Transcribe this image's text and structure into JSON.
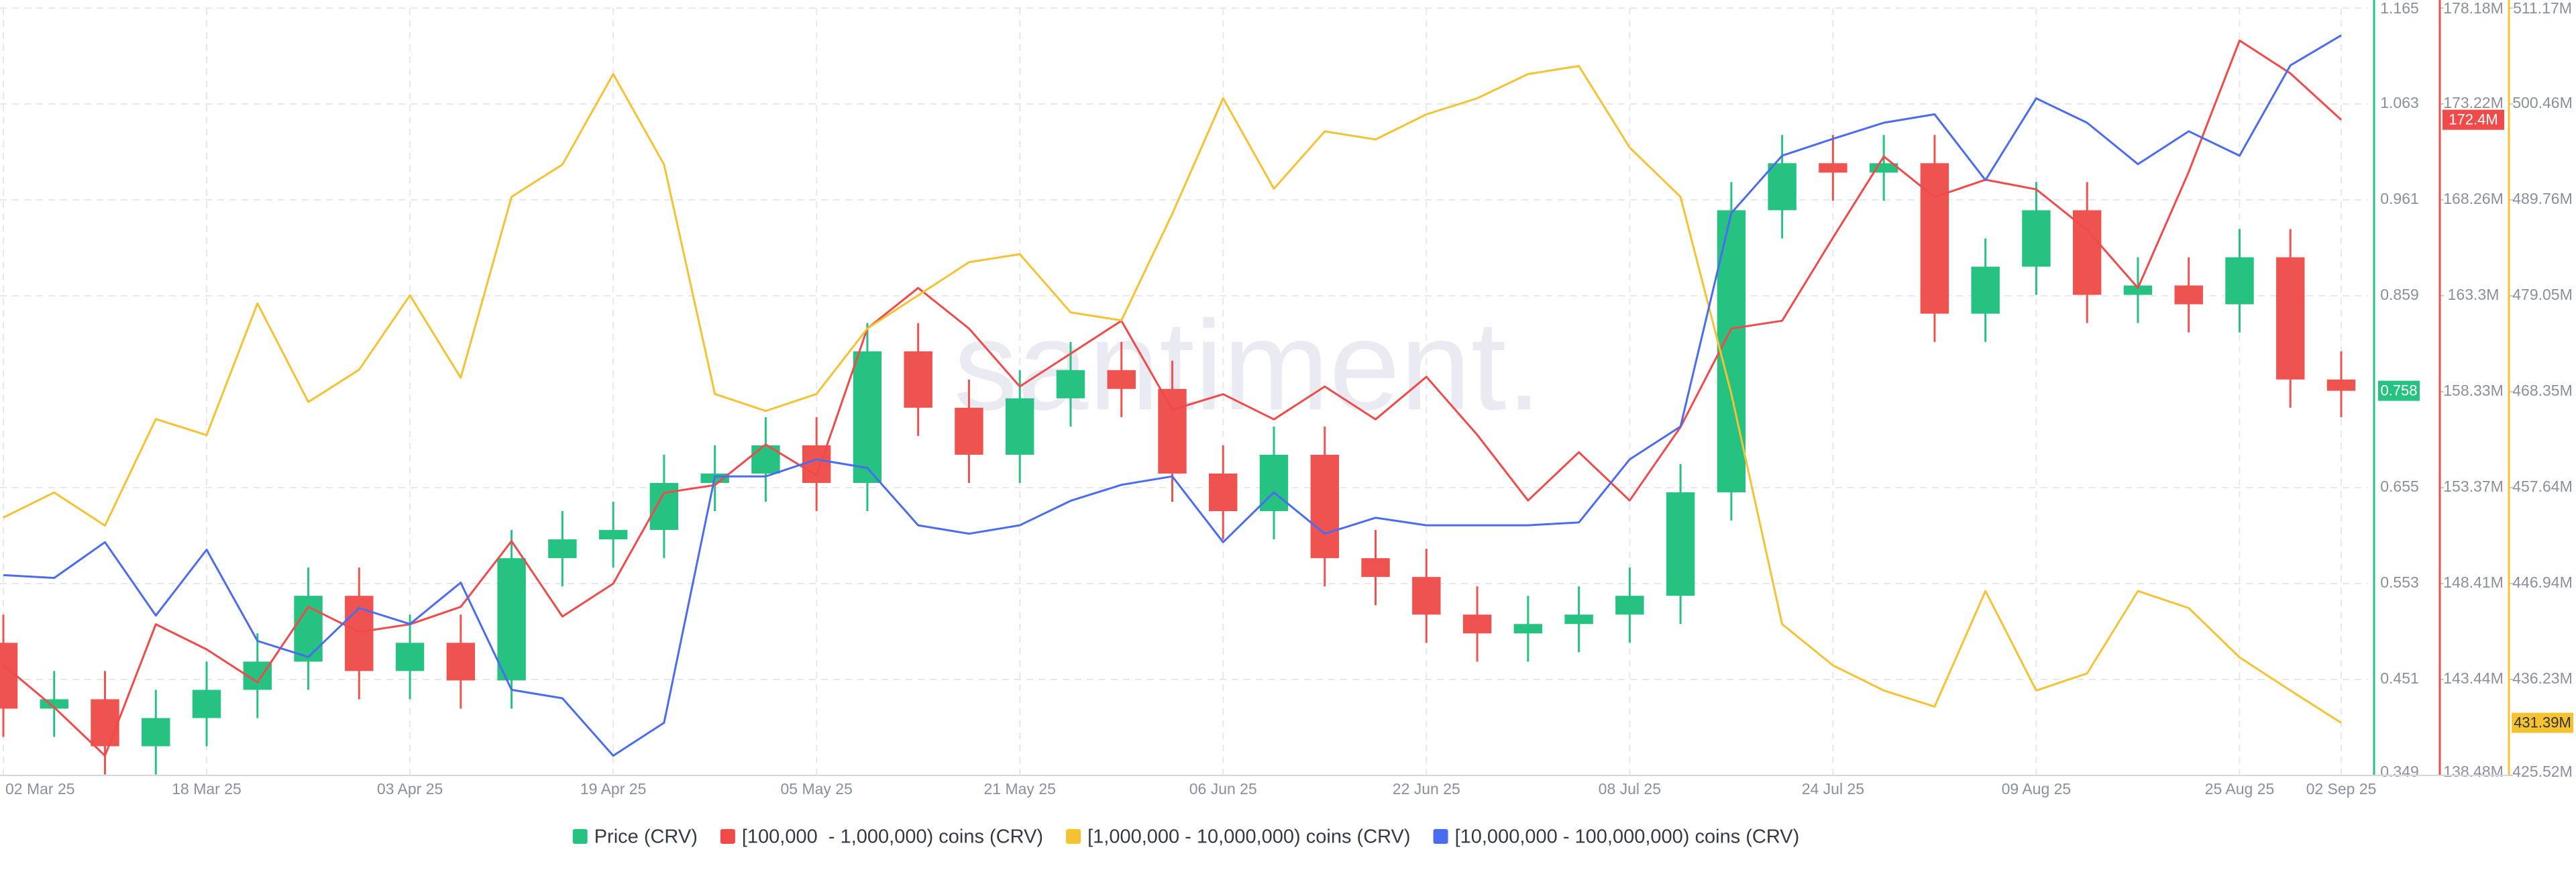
{
  "chart_data": {
    "type": "candlestick",
    "watermark": "santiment.",
    "x": [
      "2025-03-02",
      "2025-03-06",
      "2025-03-10",
      "2025-03-14",
      "2025-03-18",
      "2025-03-22",
      "2025-03-26",
      "2025-03-30",
      "2025-04-03",
      "2025-04-07",
      "2025-04-11",
      "2025-04-15",
      "2025-04-19",
      "2025-04-23",
      "2025-04-27",
      "2025-05-01",
      "2025-05-05",
      "2025-05-09",
      "2025-05-13",
      "2025-05-17",
      "2025-05-21",
      "2025-05-25",
      "2025-05-29",
      "2025-06-02",
      "2025-06-06",
      "2025-06-10",
      "2025-06-14",
      "2025-06-18",
      "2025-06-22",
      "2025-06-26",
      "2025-06-30",
      "2025-07-04",
      "2025-07-08",
      "2025-07-12",
      "2025-07-16",
      "2025-07-20",
      "2025-07-24",
      "2025-07-28",
      "2025-08-01",
      "2025-08-05",
      "2025-08-09",
      "2025-08-13",
      "2025-08-17",
      "2025-08-21",
      "2025-08-25",
      "2025-08-29",
      "2025-09-02"
    ],
    "xlim": [
      "2025-03-02",
      "2025-09-02"
    ],
    "xticks": [
      {
        "value": "2025-03-02",
        "label": "02 Mar 25"
      },
      {
        "value": "2025-03-18",
        "label": "18 Mar 25"
      },
      {
        "value": "2025-04-03",
        "label": "03 Apr 25"
      },
      {
        "value": "2025-04-19",
        "label": "19 Apr 25"
      },
      {
        "value": "2025-05-05",
        "label": "05 May 25"
      },
      {
        "value": "2025-05-21",
        "label": "21 May 25"
      },
      {
        "value": "2025-06-06",
        "label": "06 Jun 25"
      },
      {
        "value": "2025-06-22",
        "label": "22 Jun 25"
      },
      {
        "value": "2025-07-08",
        "label": "08 Jul 25"
      },
      {
        "value": "2025-07-24",
        "label": "24 Jul 25"
      },
      {
        "value": "2025-08-09",
        "label": "09 Aug 25"
      },
      {
        "value": "2025-08-25",
        "label": "25 Aug 25"
      },
      {
        "value": "2025-09-02",
        "label": "02 Sep 25"
      }
    ],
    "ylim": [
      0.349,
      1.165
    ],
    "yticks": [
      0.349,
      0.451,
      0.553,
      0.655,
      0.859,
      0.961,
      1.063,
      1.165
    ],
    "y2lim": [
      138.48,
      178.18
    ],
    "y2ticks": [
      {
        "value": 138.48,
        "label": "138.48M"
      },
      {
        "value": 143.44,
        "label": "143.44M"
      },
      {
        "value": 148.41,
        "label": "148.41M"
      },
      {
        "value": 153.37,
        "label": "153.37M"
      },
      {
        "value": 158.33,
        "label": "158.33M"
      },
      {
        "value": 163.3,
        "label": "163.3M"
      },
      {
        "value": 168.26,
        "label": "168.26M"
      },
      {
        "value": 173.22,
        "label": "173.22M"
      },
      {
        "value": 178.18,
        "label": "178.18M"
      }
    ],
    "y3lim": [
      425.52,
      511.17
    ],
    "y3ticks": [
      {
        "value": 425.52,
        "label": "425.52M"
      },
      {
        "value": 436.23,
        "label": "436.23M"
      },
      {
        "value": 446.94,
        "label": "446.94M"
      },
      {
        "value": 457.64,
        "label": "457.64M"
      },
      {
        "value": 468.35,
        "label": "468.35M"
      },
      {
        "value": 479.05,
        "label": "479.05M"
      },
      {
        "value": 489.76,
        "label": "489.76M"
      },
      {
        "value": 500.46,
        "label": "500.46M"
      },
      {
        "value": 511.17,
        "label": "511.17M"
      }
    ],
    "grid": true,
    "series": [
      {
        "name": "Price (CRV)",
        "type": "candlestick",
        "color": "#26c281",
        "up_color": "#26c281",
        "down_color": "#ef5350",
        "open": [
          0.49,
          0.42,
          0.43,
          0.38,
          0.41,
          0.44,
          0.47,
          0.54,
          0.46,
          0.49,
          0.45,
          0.58,
          0.6,
          0.61,
          0.66,
          0.67,
          0.7,
          0.66,
          0.8,
          0.74,
          0.69,
          0.75,
          0.78,
          0.76,
          0.67,
          0.63,
          0.69,
          0.58,
          0.56,
          0.52,
          0.5,
          0.51,
          0.52,
          0.54,
          0.65,
          0.95,
          1.0,
          0.99,
          1.0,
          0.84,
          0.89,
          0.95,
          0.86,
          0.87,
          0.85,
          0.9,
          0.77
        ],
        "high": [
          0.52,
          0.46,
          0.46,
          0.44,
          0.47,
          0.5,
          0.57,
          0.57,
          0.52,
          0.52,
          0.61,
          0.63,
          0.64,
          0.69,
          0.7,
          0.73,
          0.73,
          0.83,
          0.83,
          0.77,
          0.78,
          0.81,
          0.81,
          0.79,
          0.7,
          0.72,
          0.72,
          0.61,
          0.59,
          0.55,
          0.54,
          0.55,
          0.57,
          0.68,
          0.98,
          1.03,
          1.03,
          1.03,
          1.03,
          0.92,
          0.98,
          0.98,
          0.9,
          0.9,
          0.93,
          0.93,
          0.8
        ],
        "low": [
          0.39,
          0.39,
          0.35,
          0.35,
          0.38,
          0.41,
          0.44,
          0.43,
          0.43,
          0.42,
          0.42,
          0.55,
          0.57,
          0.58,
          0.63,
          0.64,
          0.63,
          0.63,
          0.71,
          0.66,
          0.66,
          0.72,
          0.73,
          0.64,
          0.6,
          0.6,
          0.55,
          0.53,
          0.49,
          0.47,
          0.47,
          0.48,
          0.49,
          0.51,
          0.62,
          0.92,
          0.96,
          0.96,
          0.81,
          0.81,
          0.86,
          0.83,
          0.83,
          0.82,
          0.82,
          0.74,
          0.73
        ],
        "close": [
          0.42,
          0.43,
          0.38,
          0.41,
          0.44,
          0.47,
          0.54,
          0.46,
          0.49,
          0.45,
          0.58,
          0.6,
          0.61,
          0.66,
          0.67,
          0.7,
          0.66,
          0.8,
          0.74,
          0.69,
          0.75,
          0.78,
          0.76,
          0.67,
          0.63,
          0.69,
          0.58,
          0.56,
          0.52,
          0.5,
          0.51,
          0.52,
          0.54,
          0.65,
          0.95,
          1.0,
          0.99,
          1.0,
          0.84,
          0.89,
          0.95,
          0.86,
          0.87,
          0.85,
          0.9,
          0.77,
          0.758
        ]
      },
      {
        "name": "[100,000  - 1,000,000) coins (CRV)",
        "type": "line",
        "axis": "y2",
        "color": "#f04a4a",
        "last_label": "172.4M",
        "values": [
          144.2,
          142.0,
          139.5,
          146.3,
          145.0,
          143.3,
          147.2,
          145.9,
          146.3,
          147.2,
          150.6,
          146.7,
          148.4,
          153.1,
          153.5,
          155.6,
          154.0,
          161.6,
          163.7,
          161.6,
          158.6,
          160.3,
          162.0,
          157.4,
          158.2,
          156.9,
          158.6,
          156.9,
          159.1,
          156.1,
          152.7,
          155.2,
          152.7,
          156.5,
          161.6,
          162.0,
          166.3,
          170.5,
          168.4,
          169.3,
          168.8,
          166.7,
          163.7,
          169.7,
          176.5,
          174.8,
          172.4
        ]
      },
      {
        "name": "[1,000,000 - 10,000,000) coins (CRV)",
        "type": "line",
        "axis": "y3",
        "color": "#f5c232",
        "last_label": "431.39M",
        "values": [
          454.3,
          457.1,
          453.4,
          465.3,
          463.5,
          478.2,
          467.2,
          470.8,
          479.1,
          469.9,
          490.1,
          493.7,
          503.8,
          493.7,
          468.1,
          466.2,
          468.1,
          475.4,
          479.1,
          482.8,
          483.7,
          477.2,
          476.3,
          488.2,
          501.1,
          491.0,
          497.4,
          496.5,
          499.3,
          501.1,
          503.8,
          504.7,
          495.6,
          490.1,
          468.1,
          442.4,
          437.8,
          435.0,
          433.2,
          446.1,
          435.0,
          436.9,
          446.1,
          444.2,
          438.7,
          435.0,
          431.39
        ]
      },
      {
        "name": "[10,000,000 - 100,000,000) coins (CRV)",
        "type": "line",
        "color": "#4a6cf0",
        "values": [
          0.562,
          0.559,
          0.597,
          0.519,
          0.589,
          0.492,
          0.475,
          0.527,
          0.51,
          0.554,
          0.44,
          0.431,
          0.37,
          0.405,
          0.667,
          0.667,
          0.685,
          0.676,
          0.615,
          0.606,
          0.615,
          0.641,
          0.658,
          0.667,
          0.597,
          0.65,
          0.606,
          0.623,
          0.615,
          0.615,
          0.615,
          0.618,
          0.685,
          0.72,
          0.947,
          1.008,
          1.026,
          1.043,
          1.052,
          0.982,
          1.069,
          1.043,
          0.999,
          1.034,
          1.008,
          1.104,
          1.136
        ]
      }
    ]
  }
}
